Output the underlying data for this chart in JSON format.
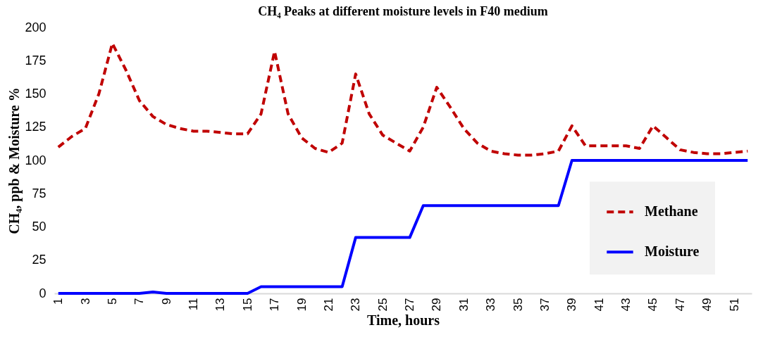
{
  "chart_data": {
    "type": "line",
    "title": "CH₄ Peaks at different moisture levels in F40 medium",
    "xlabel": "Time, hours",
    "ylabel": "CH₄, ppb & Moisture %",
    "categories": [
      "1",
      null,
      "3",
      null,
      "5",
      null,
      "7",
      null,
      "9",
      null,
      "11",
      null,
      "13",
      null,
      "15",
      null,
      "17",
      null,
      "19",
      null,
      "21",
      null,
      "23",
      null,
      "25",
      null,
      "27",
      null,
      "29",
      null,
      "31",
      null,
      "33",
      null,
      "35",
      null,
      "37",
      null,
      "39",
      null,
      "41",
      null,
      "43",
      null,
      "45",
      null,
      "47",
      null,
      "49",
      null,
      "51",
      null
    ],
    "series": [
      {
        "name": "Methane",
        "color": "#c00000",
        "line_style": "dashed",
        "values": [
          110,
          118,
          124,
          150,
          188,
          168,
          145,
          133,
          127,
          124,
          122,
          122,
          121,
          120,
          120,
          135,
          182,
          135,
          117,
          109,
          106,
          113,
          165,
          135,
          119,
          113,
          107,
          125,
          155,
          140,
          124,
          113,
          107,
          105,
          104,
          104,
          105,
          107,
          126,
          111,
          111,
          111,
          111,
          109,
          126,
          117,
          108,
          106,
          105,
          105,
          106,
          107
        ]
      },
      {
        "name": "Moisture",
        "color": "#0000ff",
        "line_style": "solid",
        "values": [
          0,
          0,
          0,
          0,
          0,
          0,
          0,
          1,
          0,
          0,
          0,
          0,
          0,
          0,
          0,
          5,
          5,
          5,
          5,
          5,
          5,
          5,
          42,
          42,
          42,
          42,
          42,
          66,
          66,
          66,
          66,
          66,
          66,
          66,
          66,
          66,
          66,
          66,
          100,
          100,
          100,
          100,
          100,
          100,
          100,
          100,
          100,
          100,
          100,
          100,
          100,
          100
        ]
      }
    ],
    "ylim": [
      0,
      200
    ],
    "yticks": [
      0,
      25,
      50,
      75,
      100,
      125,
      150,
      175,
      200
    ],
    "grid": false,
    "legend": "right",
    "marker": "none"
  }
}
